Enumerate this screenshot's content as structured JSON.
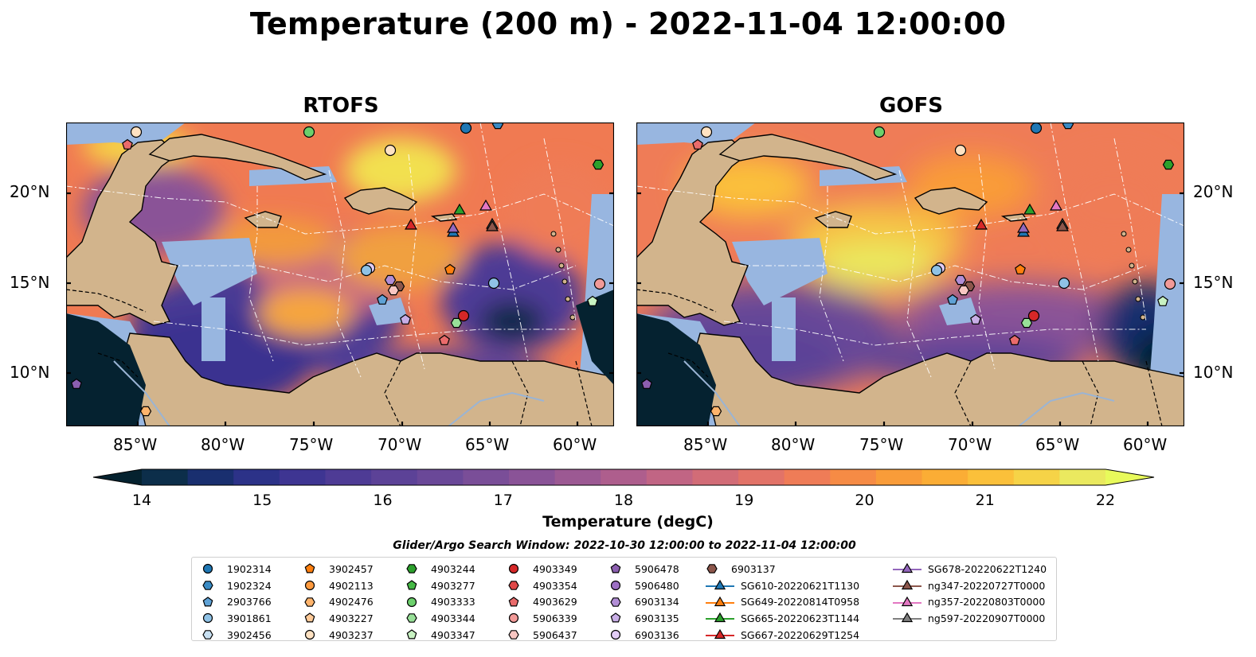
{
  "title": "Temperature (200 m) - 2022-11-04 12:00:00",
  "panels": [
    {
      "title": "RTOFS"
    },
    {
      "title": "GOFS"
    }
  ],
  "lat_ticks": [
    "20°N",
    "15°N",
    "10°N"
  ],
  "lon_ticks": [
    "85°W",
    "80°W",
    "75°W",
    "70°W",
    "65°W",
    "60°W"
  ],
  "colorbar": {
    "label": "Temperature (degC)",
    "ticks": [
      "14",
      "15",
      "16",
      "17",
      "18",
      "19",
      "20",
      "21",
      "22"
    ],
    "range": [
      14,
      22
    ],
    "step": 0.5,
    "colormap": "thermal",
    "colors": [
      "#05222f",
      "#0c2e4a",
      "#192f6f",
      "#2c3288",
      "#3e3592",
      "#4e3b95",
      "#5c4297",
      "#6a4898",
      "#7a4e98",
      "#8a5397",
      "#9c5993",
      "#ae5e8d",
      "#c16584",
      "#d26c77",
      "#e27368",
      "#ef7c57",
      "#f68b45",
      "#f99c39",
      "#fbad35",
      "#fbc03a",
      "#f6d347",
      "#eae95f",
      "#e8fa5b"
    ]
  },
  "legend": {
    "title": "Glider/Argo Search Window: 2022-10-30 12:00:00 to 2022-11-04 12:00:00",
    "columns": [
      [
        {
          "label": "1902314",
          "marker": "circle",
          "color": "#1f77b4"
        },
        {
          "label": "1902324",
          "marker": "hexagon",
          "color": "#3a8bc4"
        },
        {
          "label": "2903766",
          "marker": "pentagon",
          "color": "#5fa2d6"
        },
        {
          "label": "3901861",
          "marker": "circle",
          "color": "#8fc2e6"
        },
        {
          "label": "3902456",
          "marker": "hexagon",
          "color": "#c8e0f2"
        }
      ],
      [
        {
          "label": "3902457",
          "marker": "pentagon",
          "color": "#ff7f0e"
        },
        {
          "label": "4902113",
          "marker": "circle",
          "color": "#ff9a3e"
        },
        {
          "label": "4902476",
          "marker": "hexagon",
          "color": "#ffb46c"
        },
        {
          "label": "4903227",
          "marker": "pentagon",
          "color": "#ffca98"
        },
        {
          "label": "4903237",
          "marker": "circle",
          "color": "#ffe2c2"
        }
      ],
      [
        {
          "label": "4903244",
          "marker": "hexagon",
          "color": "#2ca02c"
        },
        {
          "label": "4903277",
          "marker": "pentagon",
          "color": "#45b845"
        },
        {
          "label": "4903333",
          "marker": "circle",
          "color": "#6cd06c"
        },
        {
          "label": "4903344",
          "marker": "hexagon",
          "color": "#98e098"
        },
        {
          "label": "4903347",
          "marker": "pentagon",
          "color": "#c8f2c2"
        }
      ],
      [
        {
          "label": "4903349",
          "marker": "circle",
          "color": "#d62728"
        },
        {
          "label": "4903354",
          "marker": "hexagon",
          "color": "#e04848"
        },
        {
          "label": "4903629",
          "marker": "pentagon",
          "color": "#ea6b6b"
        },
        {
          "label": "5906339",
          "marker": "circle",
          "color": "#f29a98"
        },
        {
          "label": "5906437",
          "marker": "hexagon",
          "color": "#f8c6c2"
        }
      ],
      [
        {
          "label": "5906478",
          "marker": "pentagon",
          "color": "#8c5fb0"
        },
        {
          "label": "5906480",
          "marker": "circle",
          "color": "#9d70c4"
        },
        {
          "label": "6903134",
          "marker": "hexagon",
          "color": "#b28ed6"
        },
        {
          "label": "6903135",
          "marker": "pentagon",
          "color": "#c8aee6"
        },
        {
          "label": "6903136",
          "marker": "circle",
          "color": "#e2ccf6"
        }
      ],
      [
        {
          "label": "6903137",
          "marker": "hexagon",
          "color": "#8c564b"
        },
        {
          "label": "SG610-20220621T1130",
          "marker": "triangle-line",
          "color": "#1f77b4"
        },
        {
          "label": "SG649-20220814T0958",
          "marker": "triangle-line",
          "color": "#ff7f0e"
        },
        {
          "label": "SG665-20220623T1144",
          "marker": "triangle-line",
          "color": "#2ca02c"
        },
        {
          "label": "SG667-20220629T1254",
          "marker": "triangle-line",
          "color": "#d62728"
        }
      ],
      [
        {
          "label": "SG678-20220622T1240",
          "marker": "triangle-line",
          "color": "#9467bd"
        },
        {
          "label": "ng347-20220727T0000",
          "marker": "triangle-line",
          "color": "#8c564b"
        },
        {
          "label": "ng357-20220803T0000",
          "marker": "triangle-line",
          "color": "#e377c2"
        },
        {
          "label": "ng597-20220907T0000",
          "marker": "triangle-line",
          "color": "#7f7f7f"
        }
      ]
    ]
  }
}
